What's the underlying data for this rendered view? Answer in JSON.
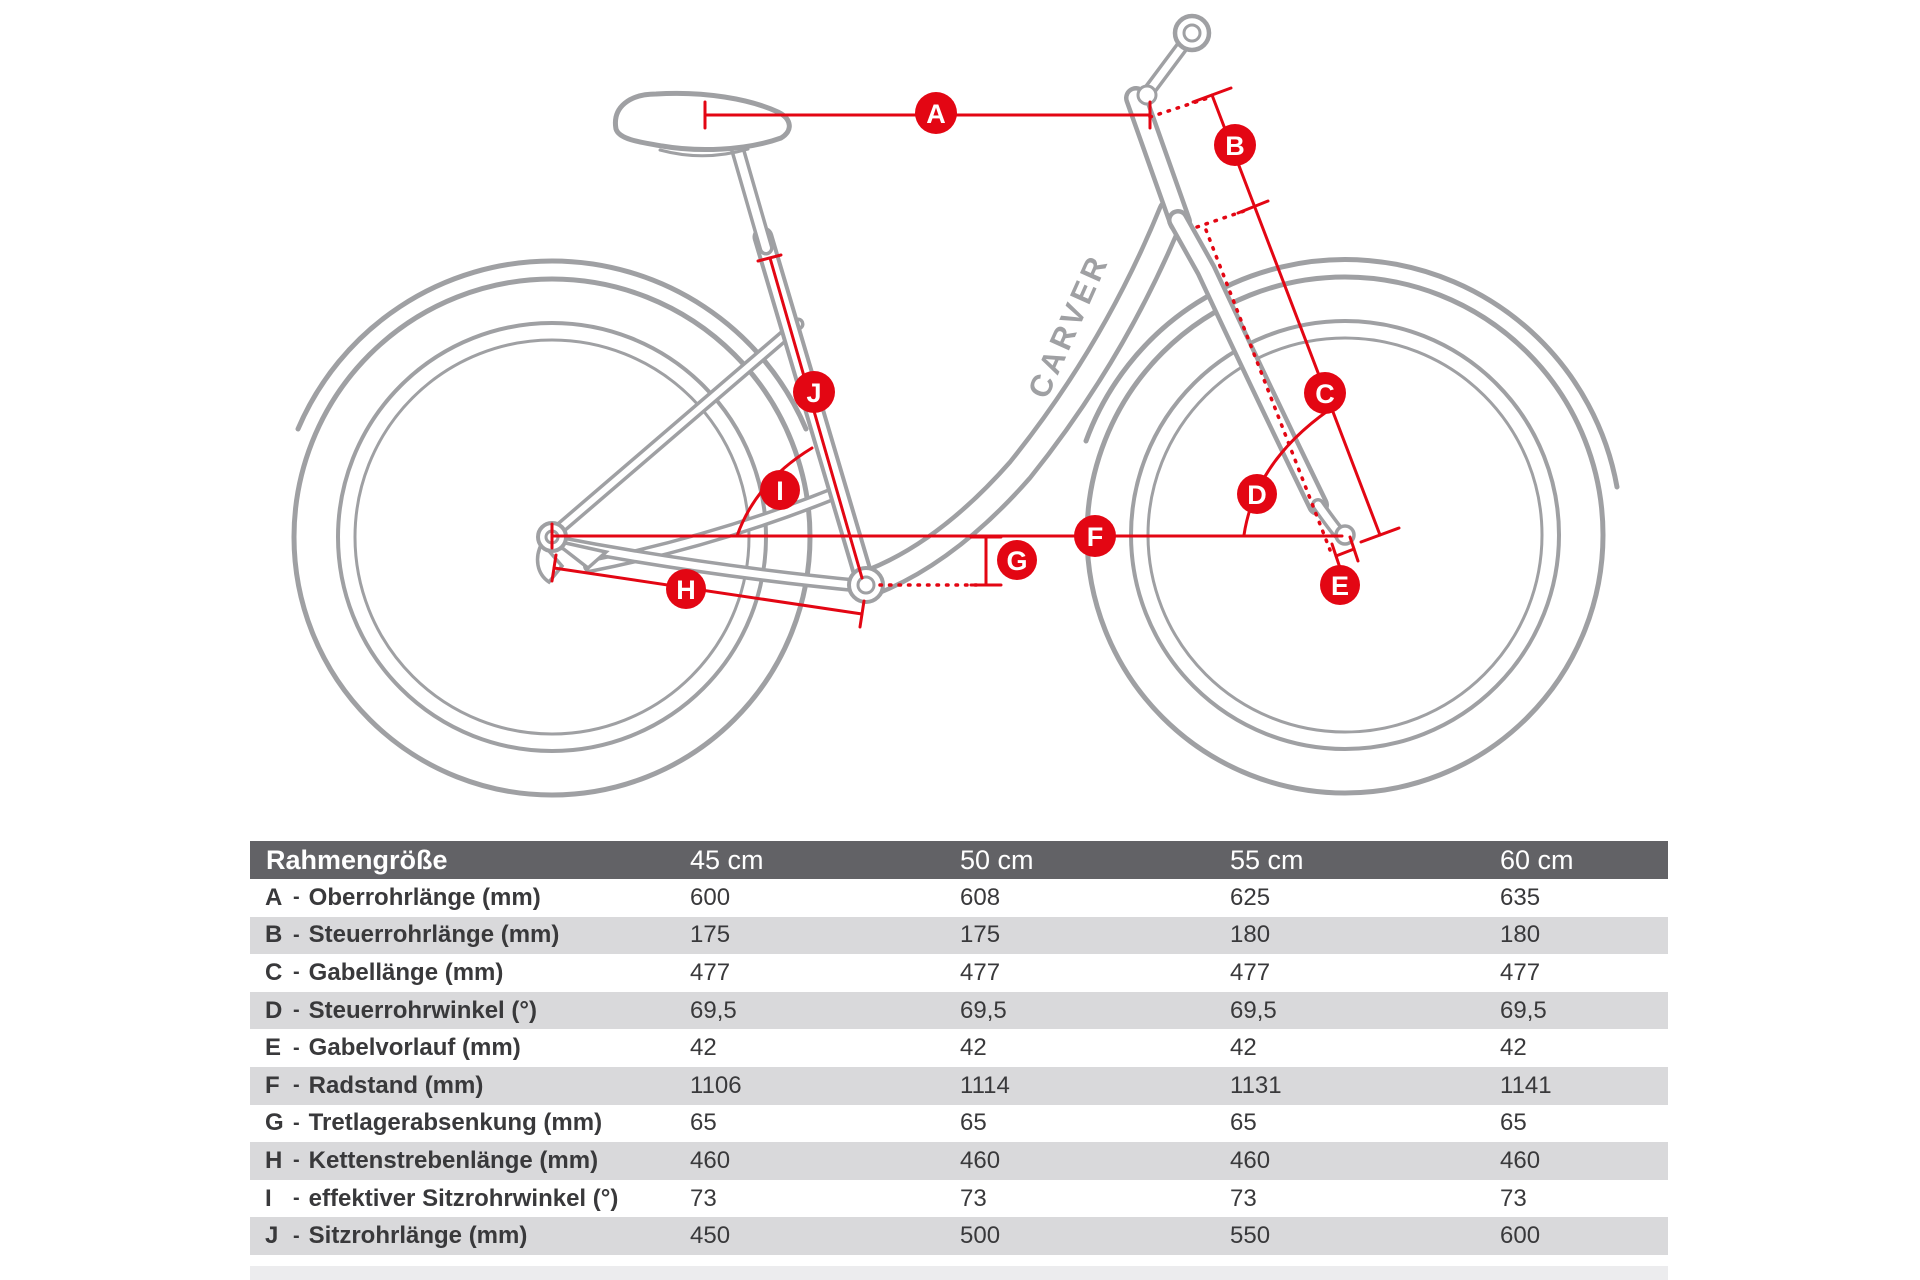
{
  "diagram": {
    "brand_logo": "CARVER",
    "labels": [
      "A",
      "B",
      "C",
      "D",
      "E",
      "F",
      "G",
      "H",
      "I",
      "J"
    ]
  },
  "table": {
    "separator": "-",
    "header": {
      "title": "Rahmengröße",
      "columns": [
        "45 cm",
        "50 cm",
        "55 cm",
        "60 cm"
      ]
    },
    "rows": [
      {
        "key": "A",
        "label": "Oberrohrlänge (mm)",
        "values": [
          "600",
          "608",
          "625",
          "635"
        ]
      },
      {
        "key": "B",
        "label": "Steuerrohrlänge (mm)",
        "values": [
          "175",
          "175",
          "180",
          "180"
        ]
      },
      {
        "key": "C",
        "label": "Gabellänge (mm)",
        "values": [
          "477",
          "477",
          "477",
          "477"
        ]
      },
      {
        "key": "D",
        "label": "Steuerrohrwinkel (°)",
        "values": [
          "69,5",
          "69,5",
          "69,5",
          "69,5"
        ]
      },
      {
        "key": "E",
        "label": "Gabelvorlauf (mm)",
        "values": [
          "42",
          "42",
          "42",
          "42"
        ]
      },
      {
        "key": "F",
        "label": "Radstand (mm)",
        "values": [
          "1106",
          "1114",
          "1131",
          "1141"
        ]
      },
      {
        "key": "G",
        "label": "Tretlagerabsenkung (mm)",
        "values": [
          "65",
          "65",
          "65",
          "65"
        ]
      },
      {
        "key": "H",
        "label": "Kettenstrebenlänge (mm)",
        "values": [
          "460",
          "460",
          "460",
          "460"
        ]
      },
      {
        "key": "I",
        "label": "effektiver Sitzrohrwinkel (°)",
        "values": [
          "73",
          "73",
          "73",
          "73"
        ]
      },
      {
        "key": "J",
        "label": "Sitzrohrlänge (mm)",
        "values": [
          "450",
          "500",
          "550",
          "600"
        ]
      }
    ]
  },
  "colors": {
    "accent": "#e30613",
    "line_gray": "#9fa0a3",
    "header_bg": "#626266",
    "row_alt": "#d9d9db",
    "text": "#39393b"
  }
}
